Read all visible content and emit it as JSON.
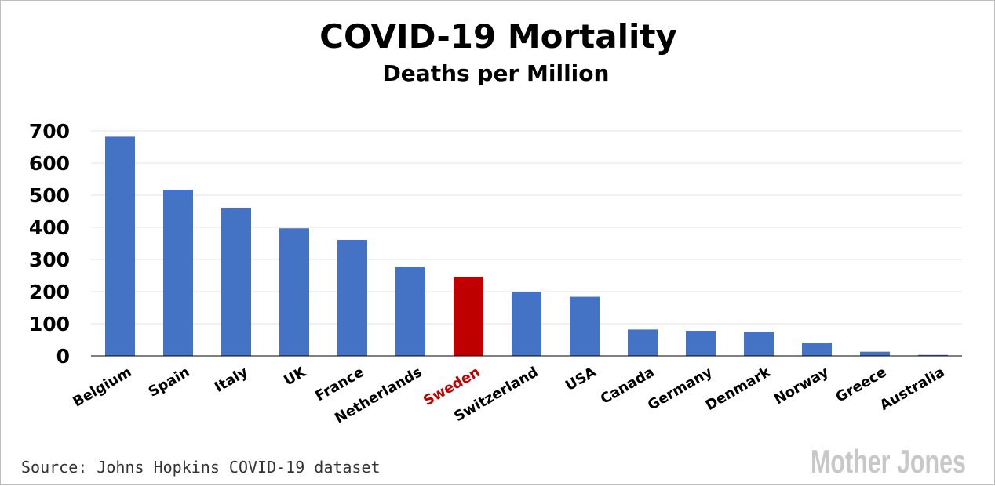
{
  "chart_data": {
    "type": "bar",
    "title": "COVID-19 Mortality",
    "subtitle": "Deaths per Million",
    "categories": [
      "Belgium",
      "Spain",
      "Italy",
      "UK",
      "France",
      "Netherlands",
      "Sweden",
      "Switzerland",
      "USA",
      "Canada",
      "Germany",
      "Denmark",
      "Norway",
      "Greece",
      "Australia"
    ],
    "values": [
      682,
      517,
      461,
      397,
      361,
      278,
      246,
      199,
      184,
      82,
      78,
      74,
      41,
      13,
      3
    ],
    "highlight": "Sweden",
    "ylim": [
      0,
      700
    ],
    "yticks": [
      0,
      100,
      200,
      300,
      400,
      500,
      600,
      700
    ],
    "grid": true,
    "colors": {
      "bar": "#4472c4",
      "highlight": "#c00000",
      "grid": "#e3e3e3",
      "axis": "#000000"
    }
  },
  "footer": {
    "source": "Source: Johns Hopkins COVID-19 dataset",
    "brand": "Mother Jones"
  }
}
